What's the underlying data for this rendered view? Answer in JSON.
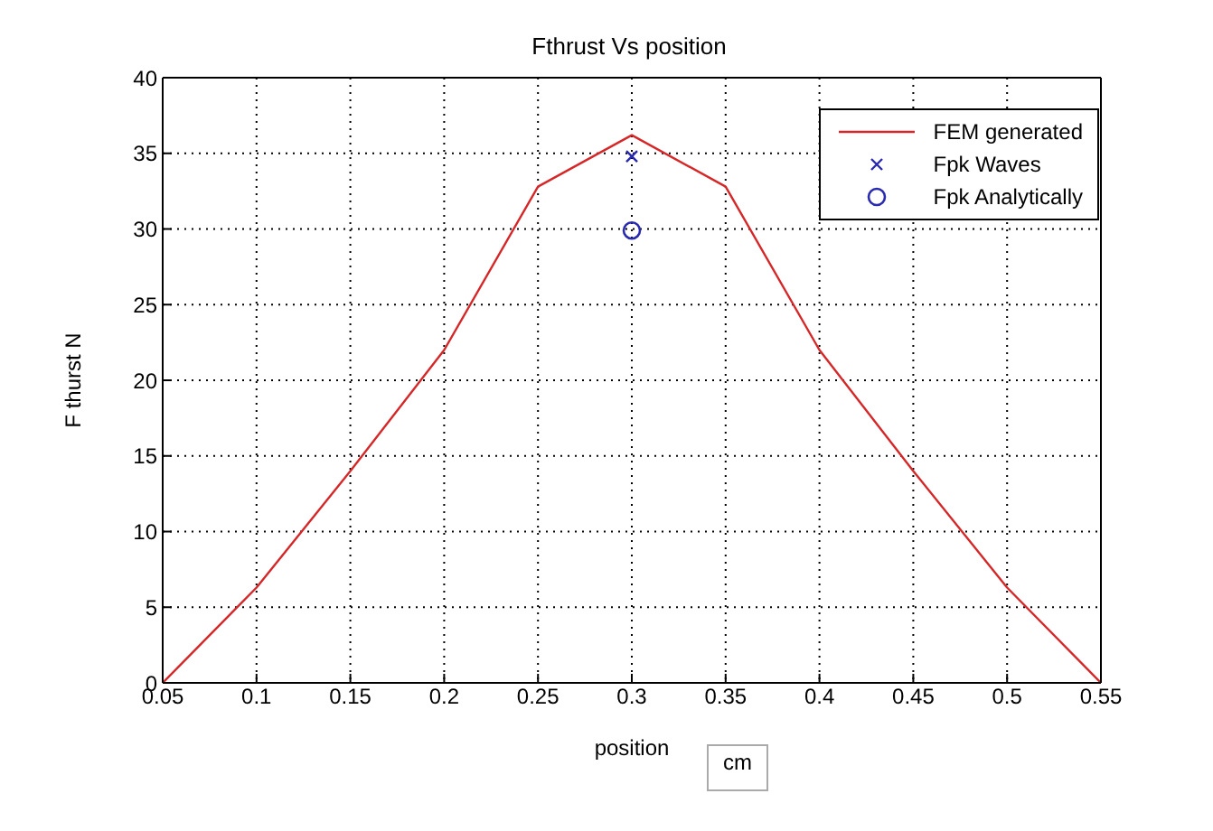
{
  "chart_data": {
    "type": "line",
    "title": "Fthrust Vs position",
    "xlabel": "position",
    "ylabel": "F thurst N",
    "annotations": [
      "cm"
    ],
    "xlim": [
      0.05,
      0.55
    ],
    "xticks": [
      0.05,
      0.1,
      0.15,
      0.2,
      0.25,
      0.3,
      0.35,
      0.4,
      0.45,
      0.5,
      0.55
    ],
    "ylim": [
      0,
      40
    ],
    "yticks": [
      0,
      5,
      10,
      15,
      20,
      25,
      30,
      35,
      40
    ],
    "grid": true,
    "legend": "top right",
    "series": [
      {
        "name": "FEM generated",
        "color": "#d62728",
        "marker": "none",
        "x": [
          0.05,
          0.1,
          0.15,
          0.2,
          0.25,
          0.3,
          0.35,
          0.4,
          0.45,
          0.5,
          0.55
        ],
        "values": [
          0,
          6.3,
          14,
          22,
          32.8,
          36.2,
          32.8,
          22,
          14,
          6.3,
          0
        ]
      },
      {
        "name": "Fpk Waves",
        "type": "scatter",
        "color": "#2a2ab0",
        "marker": "cross",
        "x": [
          0.3
        ],
        "values": [
          34.8
        ]
      },
      {
        "name": "Fpk Analytically",
        "type": "scatter",
        "color": "#2a2ab0",
        "marker": "circle",
        "x": [
          0.3
        ],
        "values": [
          29.9
        ]
      }
    ]
  }
}
